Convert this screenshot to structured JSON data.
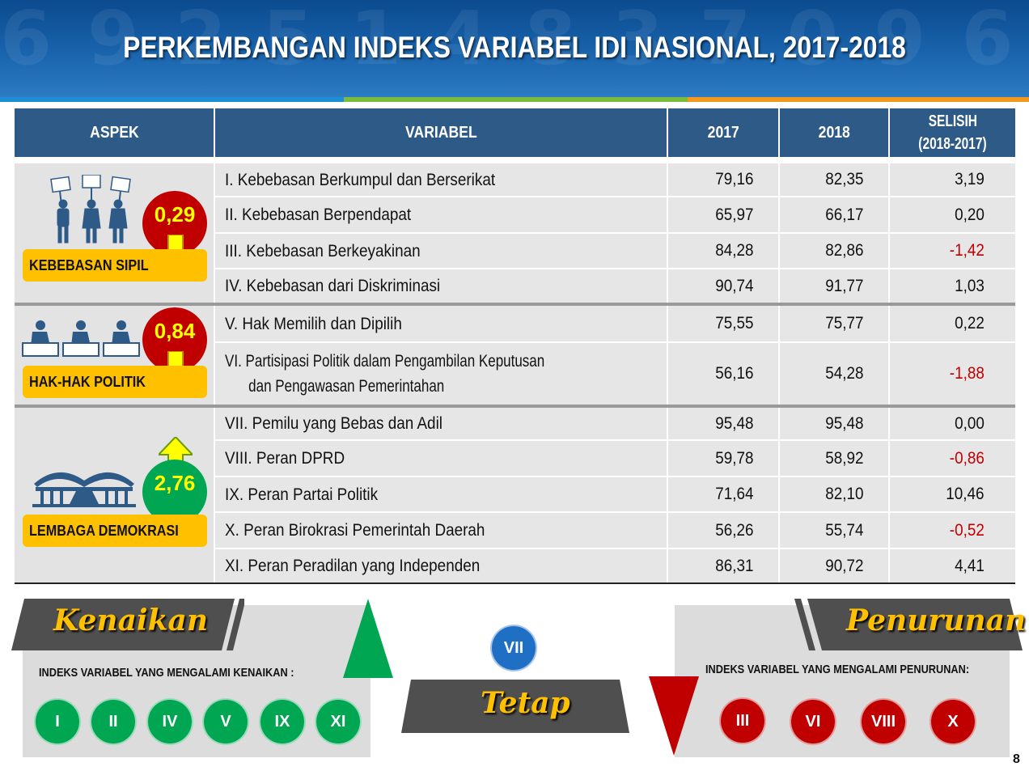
{
  "title": "PERKEMBANGAN INDEKS VARIABEL IDI NASIONAL, 2017-2018",
  "table": {
    "headers": {
      "aspek": "ASPEK",
      "variabel": "VARIABEL",
      "y2017": "2017",
      "y2018": "2018",
      "selisih_line1": "SELISIH",
      "selisih_line2": "(2018-2017)"
    },
    "aspects": [
      {
        "label": "KEBEBASAN SIPIL",
        "change": "0,29",
        "direction": "down",
        "icon": "protesters-icon"
      },
      {
        "label": "HAK-HAK POLITIK",
        "change": "0,84",
        "direction": "down",
        "icon": "voters-icon"
      },
      {
        "label": "LEMBAGA DEMOKRASI",
        "change": "2,76",
        "direction": "up",
        "icon": "parliament-building-icon"
      }
    ],
    "rows": [
      {
        "variabel": "I.  Kebebasan Berkumpul dan Berserikat",
        "v2017": "79,16",
        "v2018": "82,35",
        "selisih": "3,19"
      },
      {
        "variabel": "II.  Kebebasan  Berpendapat",
        "v2017": "65,97",
        "v2018": "66,17",
        "selisih": "0,20"
      },
      {
        "variabel": "III.  Kebebasan Berkeyakinan",
        "v2017": "84,28",
        "v2018": "82,86",
        "selisih": "-1,42"
      },
      {
        "variabel": "IV.  Kebebasan dari Diskriminasi",
        "v2017": "90,74",
        "v2018": "91,77",
        "selisih": "1,03"
      },
      {
        "variabel": "V.  Hak Memilih dan Dipilih",
        "v2017": "75,55",
        "v2018": "75,77",
        "selisih": "0,22"
      },
      {
        "variabel": "VI.  Partisipasi Politik dalam Pengambilan Keputusan",
        "variabel_line2": "dan Pengawasan Pemerintahan",
        "v2017": "56,16",
        "v2018": "54,28",
        "selisih": "-1,88"
      },
      {
        "variabel": "VII.  Pemilu yang Bebas dan Adil",
        "v2017": "95,48",
        "v2018": "95,48",
        "selisih": "0,00"
      },
      {
        "variabel": "VIII.  Peran DPRD",
        "v2017": "59,78",
        "v2018": "58,92",
        "selisih": "-0,86"
      },
      {
        "variabel": "IX.  Peran Partai Politik",
        "v2017": "71,64",
        "v2018": "82,10",
        "selisih": "10,46"
      },
      {
        "variabel": "X. Peran Birokrasi Pemerintah Daerah",
        "v2017": "56,26",
        "v2018": "55,74",
        "selisih": "-0,52"
      },
      {
        "variabel": "XI. Peran Peradilan yang Independen",
        "v2017": "86,31",
        "v2018": "90,72",
        "selisih": "4,41"
      }
    ]
  },
  "legend": {
    "kenaikan": {
      "title": "Kenaikan",
      "caption": "INDEKS VARIABEL YANG MENGALAMI KENAIKAN :",
      "items": [
        "I",
        "II",
        "IV",
        "V",
        "IX",
        "XI"
      ]
    },
    "tetap": {
      "title": "Tetap",
      "items": [
        "VII"
      ]
    },
    "penurunan": {
      "title": "Penurunan",
      "caption": "INDEKS VARIABEL YANG MENGALAMI PENURUNAN:",
      "items": [
        "III",
        "VI",
        "VIII",
        "X"
      ]
    }
  },
  "colors": {
    "header_blue": "#2e5a88",
    "negative_red": "#c00000",
    "badge_yellow": "#ffc000",
    "increase_green": "#00a651",
    "decrease_red": "#c00000",
    "steady_blue": "#1f6fc5"
  },
  "page_number": "8"
}
